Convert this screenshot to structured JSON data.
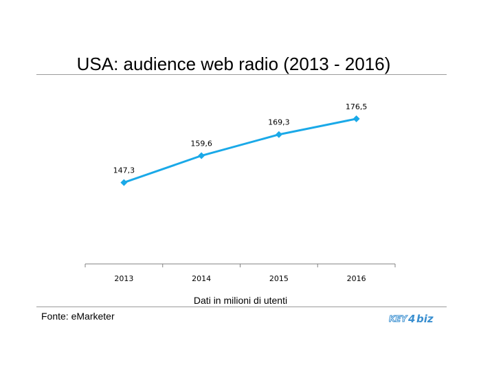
{
  "title": "USA: audience web radio (2013 - 2016)",
  "xlabel": "Dati in milioni di utenti",
  "source": "Fonte: eMarketer",
  "logo_text": "KEY4biz",
  "colors": {
    "line": "#1AA9E8",
    "rule": "#9a9a9a",
    "axis": "#808080",
    "logo": "#3a8fd0"
  },
  "chart_data": {
    "type": "line",
    "title": "USA: audience web radio (2013 - 2016)",
    "xlabel": "Dati in milioni di utenti",
    "ylabel": "",
    "categories": [
      "2013",
      "2014",
      "2015",
      "2016"
    ],
    "series": [
      {
        "values": [
          147.3,
          159.6,
          169.3,
          176.5
        ]
      }
    ],
    "value_labels": [
      "147,3",
      "159,6",
      "169,3",
      "176,5"
    ],
    "ylim": [
      110,
      190
    ],
    "grid": false,
    "legend": "none"
  }
}
